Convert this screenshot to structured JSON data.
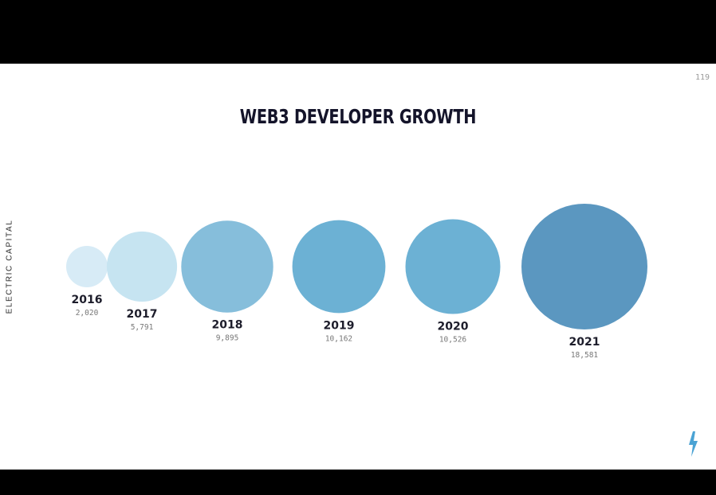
{
  "slide": {
    "page_number": "119",
    "title": "WEB3 DEVELOPER GROWTH",
    "brand": "ELECTRIC CAPITAL"
  },
  "colors": {
    "background": "#ffffff",
    "letterbox": "#000000",
    "title": "#14142a",
    "logo": "#4ba3d4"
  },
  "icons": {
    "logo": "lightning-bolt-icon"
  },
  "chart_data": {
    "type": "bubble",
    "title": "WEB3 DEVELOPER GROWTH",
    "categories": [
      "2016",
      "2017",
      "2018",
      "2019",
      "2020",
      "2021"
    ],
    "values": [
      2020,
      5791,
      9895,
      10162,
      10526,
      18581
    ],
    "value_labels": [
      "2,020",
      "5,791",
      "9,895",
      "10,162",
      "10,526",
      "18,581"
    ],
    "colors": [
      "#d7ebf6",
      "#c6e4f1",
      "#86bedb",
      "#6cb1d4",
      "#6cb1d4",
      "#5b97c0"
    ]
  }
}
